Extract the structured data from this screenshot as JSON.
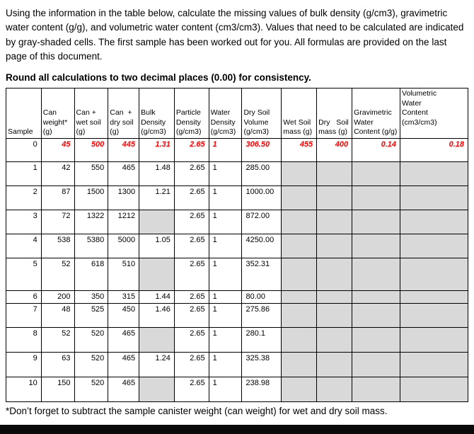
{
  "intro": {
    "paragraph": "Using the information in the table below, calculate the missing values of bulk density (g/cm3), gravimetric water content (g/g), and volumetric water content (cm3/cm3). Values that need to be calculated are indicated by gray-shaded cells. The first sample has been worked out for you. All formulas are provided on the last page of this document.",
    "instruction": "Round all calculations to two decimal places (0.00) for consistency."
  },
  "colors": {
    "worked_example_text": "#ff0000",
    "shaded_cell": "#d9d9d9"
  },
  "table": {
    "headers": [
      {
        "key": "sample",
        "lines": [
          "Sample"
        ]
      },
      {
        "key": "can-weight",
        "lines": [
          "Can",
          "weight*",
          "(g)"
        ]
      },
      {
        "key": "can-wet-soil",
        "lines": [
          "Can +",
          "wet soil",
          "(g)"
        ]
      },
      {
        "key": "can-dry-soil",
        "lines": [
          "Can  +",
          "dry soil",
          "(g)"
        ]
      },
      {
        "key": "bulk-density",
        "lines": [
          "Bulk",
          "Density",
          "(g/cm3)"
        ]
      },
      {
        "key": "particle-density",
        "lines": [
          "Particle",
          "Density",
          "(g/cm3)"
        ]
      },
      {
        "key": "water-density",
        "lines": [
          "Water",
          "Density",
          "(g/cm3)"
        ]
      },
      {
        "key": "dry-soil-volume",
        "lines": [
          "Dry Soil",
          "Volume",
          "(g/cm3)"
        ]
      },
      {
        "key": "wet-soil-mass",
        "lines": [
          "Wet Soil",
          "mass (g)"
        ]
      },
      {
        "key": "dry-soil-mass",
        "lines": [
          "Dry   Soil",
          "mass (g)"
        ]
      },
      {
        "key": "gravimetric-water-content",
        "lines": [
          "Gravimetric",
          "Water",
          "Content (g/g)"
        ]
      },
      {
        "key": "volumetric-water-content",
        "lines": [
          "Volumetric",
          "Water",
          "Content",
          "(cm3/cm3)"
        ]
      }
    ],
    "rows": [
      {
        "worked_example": true,
        "cells": [
          "0",
          "45",
          "500",
          "445",
          "1.31",
          "2.65",
          "1",
          "306.50",
          "455",
          "400",
          "0.14",
          "0.18"
        ],
        "shaded": []
      },
      {
        "worked_example": false,
        "cells": [
          "1",
          "42",
          "550",
          "465",
          "1.48",
          "2.65",
          "1",
          "285.00",
          "",
          "",
          "",
          ""
        ],
        "shaded": [
          8,
          9,
          10,
          11
        ]
      },
      {
        "worked_example": false,
        "cells": [
          "2",
          "87",
          "1500",
          "1300",
          "1.21",
          "2.65",
          "1",
          "1000.00",
          "",
          "",
          "",
          ""
        ],
        "shaded": [
          8,
          9,
          10,
          11
        ]
      },
      {
        "worked_example": false,
        "cells": [
          "3",
          "72",
          "1322",
          "1212",
          "",
          "2.65",
          "1",
          "872.00",
          "",
          "",
          "",
          ""
        ],
        "shaded": [
          4,
          8,
          9,
          10,
          11
        ]
      },
      {
        "worked_example": false,
        "cells": [
          "4",
          "538",
          "5380",
          "5000",
          "1.05",
          "2.65",
          "1",
          "4250.00",
          "",
          "",
          "",
          ""
        ],
        "shaded": [
          8,
          9,
          10,
          11
        ]
      },
      {
        "worked_example": false,
        "cells": [
          "5",
          "52",
          "618",
          "510",
          "",
          "2.65",
          "1",
          "352.31",
          "",
          "",
          "",
          ""
        ],
        "shaded": [
          4,
          8,
          9,
          10,
          11
        ]
      },
      {
        "worked_example": false,
        "cells": [
          "6",
          "200",
          "350",
          "315",
          "1.44",
          "2.65",
          "1",
          "80.00",
          "",
          "",
          "",
          ""
        ],
        "shaded": [
          8,
          9,
          10,
          11
        ]
      },
      {
        "worked_example": false,
        "cells": [
          "7",
          "48",
          "525",
          "450",
          "1.46",
          "2.65",
          "1",
          "275.86",
          "",
          "",
          "",
          ""
        ],
        "shaded": [
          8,
          9,
          10,
          11
        ]
      },
      {
        "worked_example": false,
        "cells": [
          "8",
          "52",
          "520",
          "465",
          "",
          "2.65",
          "1",
          "280.1",
          "",
          "",
          "",
          ""
        ],
        "shaded": [
          4,
          8,
          9,
          10,
          11
        ]
      },
      {
        "worked_example": false,
        "cells": [
          "9",
          "63",
          "520",
          "465",
          "1.24",
          "2.65",
          "1",
          "325.38",
          "",
          "",
          "",
          ""
        ],
        "shaded": [
          8,
          9,
          10,
          11
        ]
      },
      {
        "worked_example": false,
        "cells": [
          "10",
          "150",
          "520",
          "465",
          "",
          "2.65",
          "1",
          "238.98",
          "",
          "",
          "",
          ""
        ],
        "shaded": [
          4,
          8,
          9,
          10,
          11
        ]
      }
    ]
  },
  "footnote": "*Don’t forget to subtract the sample canister weight (can weight) for wet and dry soil mass."
}
